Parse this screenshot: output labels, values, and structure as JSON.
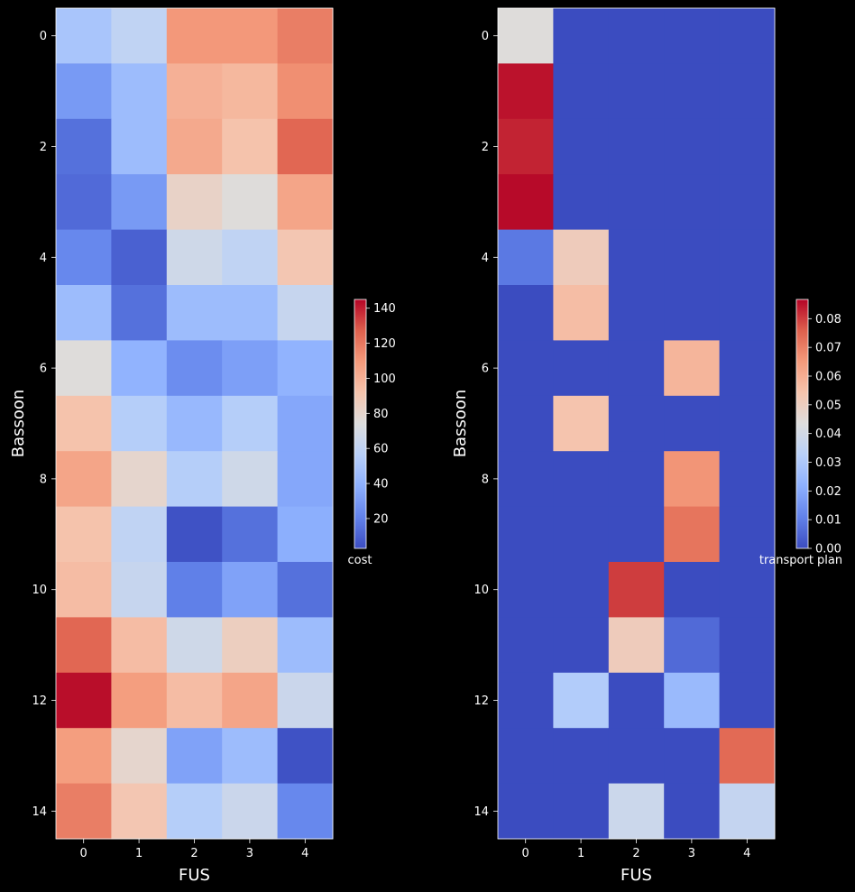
{
  "chart_data": [
    {
      "type": "heatmap",
      "xlabel": "FUS",
      "ylabel": "Bassoon",
      "x_ticks": [
        "0",
        "1",
        "2",
        "3",
        "4"
      ],
      "y_ticks": [
        "0",
        "2",
        "4",
        "6",
        "8",
        "10",
        "12",
        "14"
      ],
      "rows": 15,
      "cols": 5,
      "colormap": "coolwarm",
      "colorbar": {
        "label": "cost",
        "vmin": 3,
        "vmax": 145,
        "ticks": [
          20,
          40,
          60,
          80,
          100,
          120,
          140
        ]
      },
      "values": [
        [
          50,
          60,
          110,
          110,
          118
        ],
        [
          30,
          45,
          100,
          97,
          113
        ],
        [
          15,
          45,
          103,
          92,
          125
        ],
        [
          13,
          30,
          82,
          75,
          105
        ],
        [
          23,
          10,
          67,
          60,
          90
        ],
        [
          45,
          15,
          45,
          45,
          63
        ],
        [
          75,
          40,
          25,
          32,
          40
        ],
        [
          92,
          55,
          43,
          55,
          35
        ],
        [
          105,
          80,
          55,
          67,
          35
        ],
        [
          92,
          60,
          5,
          15,
          38
        ],
        [
          95,
          63,
          20,
          33,
          15
        ],
        [
          125,
          95,
          67,
          85,
          45
        ],
        [
          143,
          108,
          95,
          105,
          65
        ],
        [
          108,
          80,
          33,
          45,
          5
        ],
        [
          118,
          90,
          55,
          65,
          23
        ]
      ]
    },
    {
      "type": "heatmap",
      "xlabel": "FUS",
      "ylabel": "Bassoon",
      "x_ticks": [
        "0",
        "1",
        "2",
        "3",
        "4"
      ],
      "y_ticks": [
        "0",
        "2",
        "4",
        "6",
        "8",
        "10",
        "12",
        "14"
      ],
      "rows": 15,
      "cols": 5,
      "colormap": "coolwarm",
      "colorbar": {
        "label": "transport plan",
        "vmin": 0,
        "vmax": 0.0867,
        "ticks": [
          "0.00",
          "0.01",
          "0.02",
          "0.03",
          "0.04",
          "0.05",
          "0.06",
          "0.07",
          "0.08"
        ]
      },
      "values": [
        [
          0.044,
          0,
          0,
          0,
          0
        ],
        [
          0.085,
          0,
          0,
          0,
          0
        ],
        [
          0.083,
          0,
          0,
          0,
          0
        ],
        [
          0.086,
          0,
          0,
          0,
          0
        ],
        [
          0.009,
          0.051,
          0,
          0,
          0
        ],
        [
          0,
          0.056,
          0,
          0,
          0
        ],
        [
          0,
          0,
          0,
          0.058,
          0
        ],
        [
          0,
          0.054,
          0,
          0,
          0
        ],
        [
          0,
          0,
          0,
          0.066,
          0
        ],
        [
          0,
          0,
          0,
          0.072,
          0
        ],
        [
          0,
          0,
          0.08,
          0,
          0
        ],
        [
          0,
          0,
          0.051,
          0.006,
          0
        ],
        [
          0,
          0.031,
          0,
          0.025,
          0
        ],
        [
          0,
          0,
          0,
          0,
          0.074
        ],
        [
          0,
          0,
          0.038,
          0,
          0.036
        ]
      ]
    }
  ]
}
